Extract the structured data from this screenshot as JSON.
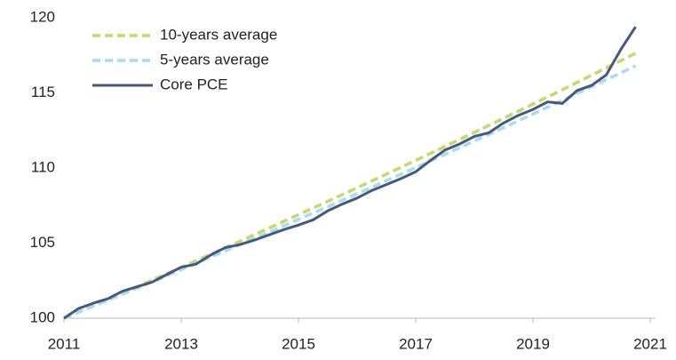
{
  "chart_data": {
    "type": "line",
    "x": [
      2011,
      2011.25,
      2011.5,
      2011.75,
      2012,
      2012.25,
      2012.5,
      2012.75,
      2013,
      2013.25,
      2013.5,
      2013.75,
      2014,
      2014.25,
      2014.5,
      2014.75,
      2015,
      2015.25,
      2015.5,
      2015.75,
      2016,
      2016.25,
      2016.5,
      2016.75,
      2017,
      2017.25,
      2017.5,
      2017.75,
      2018,
      2018.25,
      2018.5,
      2018.75,
      2019,
      2019.25,
      2019.5,
      2019.75,
      2020,
      2020.25,
      2020.5,
      2020.75
    ],
    "series": [
      {
        "name": "10-years average",
        "color": "#c4d96a",
        "dashed": true,
        "values": [
          100.0,
          100.42,
          100.84,
          101.26,
          101.68,
          102.1,
          102.53,
          102.96,
          103.38,
          103.82,
          104.25,
          104.69,
          105.12,
          105.56,
          106.0,
          106.45,
          106.89,
          107.34,
          107.78,
          108.23,
          108.68,
          109.14,
          109.59,
          110.05,
          110.51,
          110.97,
          111.44,
          111.9,
          112.37,
          112.84,
          113.31,
          113.78,
          114.26,
          114.73,
          115.21,
          115.69,
          116.18,
          116.66,
          117.15,
          117.64
        ]
      },
      {
        "name": "5-years average",
        "color": "#a6dcef",
        "dashed": true,
        "values": [
          100.0,
          100.4,
          100.8,
          101.2,
          101.61,
          102.01,
          102.42,
          102.83,
          103.24,
          103.65,
          104.06,
          104.48,
          104.9,
          105.31,
          105.73,
          106.15,
          106.58,
          107.0,
          107.43,
          107.86,
          108.29,
          108.72,
          109.16,
          109.59,
          110.03,
          110.47,
          110.91,
          111.35,
          111.8,
          112.24,
          112.69,
          113.14,
          113.59,
          114.05,
          114.5,
          114.96,
          115.42,
          115.88,
          116.34,
          116.8
        ]
      },
      {
        "name": "Core PCE",
        "color": "#44597c",
        "dashed": false,
        "values": [
          100.0,
          100.65,
          101.0,
          101.3,
          101.8,
          102.1,
          102.4,
          102.9,
          103.4,
          103.6,
          104.2,
          104.7,
          104.9,
          105.2,
          105.55,
          105.9,
          106.2,
          106.55,
          107.15,
          107.6,
          108.0,
          108.5,
          108.9,
          109.3,
          109.75,
          110.5,
          111.2,
          111.6,
          112.1,
          112.35,
          113.0,
          113.5,
          113.9,
          114.4,
          114.3,
          115.15,
          115.5,
          116.2,
          117.9,
          119.4
        ]
      }
    ],
    "xlim": [
      2011,
      2021
    ],
    "xticks": [
      2011,
      2013,
      2015,
      2017,
      2019,
      2021
    ],
    "ylim": [
      100,
      120
    ],
    "yticks": [
      100,
      105,
      110,
      115,
      120
    ],
    "grid": false,
    "legend": "top-left"
  }
}
